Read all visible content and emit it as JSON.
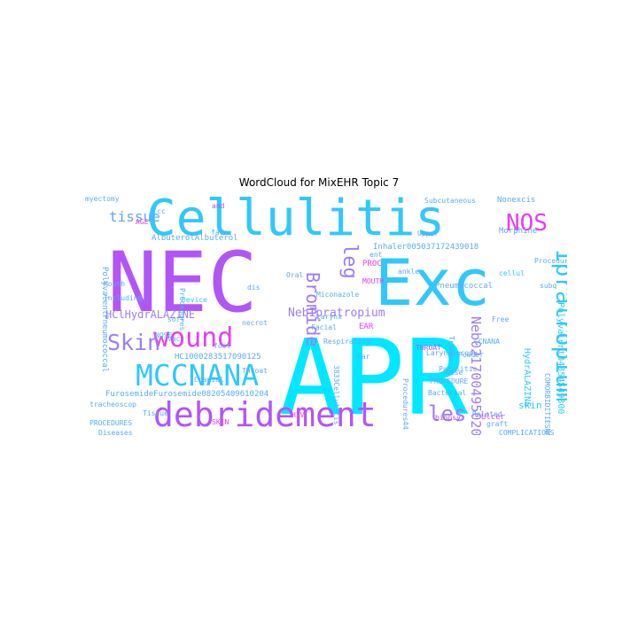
{
  "title": "WordCloud for MixEHR Topic 7",
  "colors": {
    "cyan": "#00e8ff",
    "sky": "#30c8fc",
    "blue": "#5aaafa",
    "lilac": "#9e7cf7",
    "purple": "#b255f7",
    "magenta": "#e53ff0"
  },
  "words": [
    {
      "text": "APR",
      "color": "cyan"
    },
    {
      "text": "NEC",
      "color": "purple"
    },
    {
      "text": "Exc",
      "color": "sky"
    },
    {
      "text": "Cellulitis",
      "color": "sky"
    },
    {
      "text": "debridement",
      "color": "purple"
    },
    {
      "text": "MCCNANA",
      "color": "sky"
    },
    {
      "text": "wound",
      "color": "magenta"
    },
    {
      "text": "Ipratropium",
      "color": "sky"
    },
    {
      "text": "Skin",
      "color": "lilac"
    },
    {
      "text": "Bromide",
      "color": "lilac"
    },
    {
      "text": "leg",
      "color": "lilac"
    },
    {
      "text": "les",
      "color": "lilac"
    },
    {
      "text": "NOS",
      "color": "magenta"
    },
    {
      "text": "Neb02170049502068524",
      "color": "lilac"
    },
    {
      "text": "tissue",
      "color": "blue"
    },
    {
      "text": "NebIpratropium",
      "color": "lilac"
    },
    {
      "text": "HClHydrALAZINE",
      "color": "lilac"
    },
    {
      "text": "FurosemideFurosemide08205409610204",
      "color": "blue"
    },
    {
      "text": "HC1000283517090125",
      "color": "blue"
    },
    {
      "text": "PolyvalentPneumococcal",
      "color": "blue"
    },
    {
      "text": "Polyvalent04854549300",
      "color": "sky"
    },
    {
      "text": "HydrALAZINE",
      "color": "sky"
    },
    {
      "text": "myectomy",
      "color": "blue"
    },
    {
      "text": "AGE",
      "color": "magenta"
    },
    {
      "text": "and",
      "color": "purple"
    },
    {
      "text": "face",
      "color": "blue"
    },
    {
      "text": "Upper",
      "color": "blue"
    },
    {
      "text": "Subcutaneous",
      "color": "blue"
    },
    {
      "text": "Nonexcis",
      "color": "blue"
    },
    {
      "text": "Morphine",
      "color": "blue"
    },
    {
      "text": "Inhaler005037172439018",
      "color": "blue"
    },
    {
      "text": "AlbuterolAlbuterol",
      "color": "blue"
    },
    {
      "text": "Pneumococcal",
      "color": "blue"
    },
    {
      "text": "Miconazole",
      "color": "blue"
    },
    {
      "text": "Facial",
      "color": "blue"
    },
    {
      "text": "larynx",
      "color": "blue"
    },
    {
      "text": "ankle",
      "color": "blue"
    },
    {
      "text": "Mouth",
      "color": "blue"
    },
    {
      "text": "Including",
      "color": "blue"
    },
    {
      "text": "Procedures",
      "color": "blue"
    },
    {
      "text": "Device",
      "color": "sky"
    },
    {
      "text": "soft",
      "color": "blue"
    },
    {
      "text": "necrot",
      "color": "blue"
    },
    {
      "text": "Respiratory",
      "color": "blue"
    },
    {
      "text": "Ear",
      "color": "blue"
    },
    {
      "text": "Laryngoscopy",
      "color": "blue"
    },
    {
      "text": "PROC",
      "color": "magenta"
    },
    {
      "text": "MOUTH",
      "color": "magenta"
    },
    {
      "text": "EAR",
      "color": "magenta"
    },
    {
      "text": "THROAT",
      "color": "purple"
    },
    {
      "text": "CCNANA",
      "color": "blue"
    },
    {
      "text": "Trauma",
      "color": "blue"
    },
    {
      "text": "Parasitic",
      "color": "blue"
    },
    {
      "text": "Procedures44",
      "color": "blue"
    },
    {
      "text": "Powder",
      "color": "blue"
    },
    {
      "text": "Nose",
      "color": "blue"
    },
    {
      "text": "skin",
      "color": "sky"
    },
    {
      "text": "NOSE",
      "color": "blue"
    },
    {
      "text": "foot",
      "color": "blue"
    },
    {
      "text": "Throat",
      "color": "blue"
    },
    {
      "text": "Cranial",
      "color": "blue"
    },
    {
      "text": "Bacterial",
      "color": "blue"
    },
    {
      "text": "tracheoscop",
      "color": "blue"
    },
    {
      "text": "Tissue",
      "color": "blue"
    },
    {
      "text": "SKIN",
      "color": "magenta"
    },
    {
      "text": "PROCEDURES",
      "color": "blue"
    },
    {
      "text": "Diseases",
      "color": "blue"
    },
    {
      "text": "HIV",
      "color": "magenta"
    },
    {
      "text": "PROCEDURE",
      "color": "blue"
    },
    {
      "text": "3833Cellulitis",
      "color": "blue"
    },
    {
      "text": "Related",
      "color": "blue"
    },
    {
      "text": "biopsy",
      "color": "purple"
    },
    {
      "text": "Ulcer",
      "color": "magenta"
    },
    {
      "text": "graft",
      "color": "blue"
    },
    {
      "text": "COMPLICATIONS",
      "color": "blue"
    },
    {
      "text": "COMORBIDITIESNANA",
      "color": "blue"
    },
    {
      "text": "Free",
      "color": "blue"
    },
    {
      "text": "cellul",
      "color": "sky"
    },
    {
      "text": "subq",
      "color": "blue"
    },
    {
      "text": "Vac",
      "color": "blue"
    },
    {
      "text": "Oral",
      "color": "blue"
    },
    {
      "text": "ent",
      "color": "blue"
    },
    {
      "text": "dis",
      "color": "blue"
    },
    {
      "text": "Procedures21",
      "color": "blue"
    },
    {
      "text": "cc",
      "color": "blue"
    }
  ]
}
